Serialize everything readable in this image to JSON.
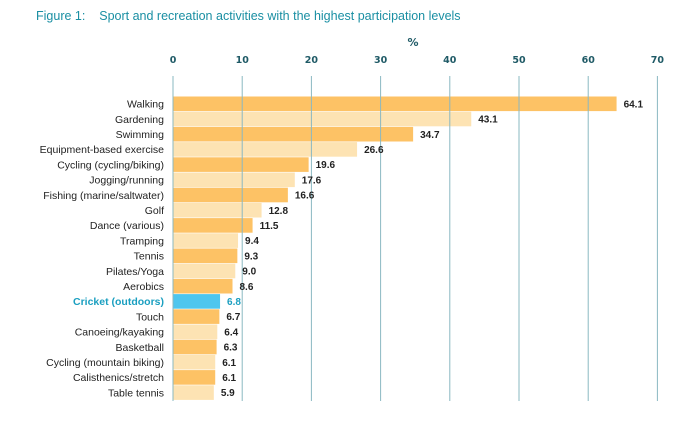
{
  "figure": {
    "label": "Figure 1:",
    "title": "Sport and recreation activities with the highest participation levels"
  },
  "chart_data": {
    "type": "bar",
    "orientation": "horizontal",
    "xlabel": "%",
    "xlim": [
      0,
      70
    ],
    "xticks": [
      0,
      10,
      20,
      30,
      40,
      50,
      60,
      70
    ],
    "grid": true,
    "categories": [
      "Walking",
      "Gardening",
      "Swimming",
      "Equipment-based exercise",
      "Cycling (cycling/biking)",
      "Jogging/running",
      "Fishing (marine/saltwater)",
      "Golf",
      "Dance (various)",
      "Tramping",
      "Tennis",
      "Pilates/Yoga",
      "Aerobics",
      "Cricket (outdoors)",
      "Touch",
      "Canoeing/kayaking",
      "Basketball",
      "Cycling (mountain biking)",
      "Calisthenics/stretch",
      "Table tennis"
    ],
    "values": [
      64.1,
      43.1,
      34.7,
      26.6,
      19.6,
      17.6,
      16.6,
      12.8,
      11.5,
      9.4,
      9.3,
      9.0,
      8.6,
      6.8,
      6.7,
      6.4,
      6.3,
      6.1,
      6.1,
      5.9
    ],
    "value_labels": [
      "64.1",
      "43.1",
      "34.7",
      "26.6",
      "19.6",
      "17.6",
      "16.6",
      "12.8",
      "11.5",
      "9.4",
      "9.3",
      "9.0",
      "8.6",
      "6.8",
      "6.7",
      "6.4",
      "6.3",
      "6.1",
      "6.1",
      "5.9"
    ],
    "highlight": "Cricket (outdoors)",
    "colors": {
      "bar_dark": "#fdc265",
      "bar_light": "#fde3b3",
      "highlight": "#4ec6ee",
      "highlight_text": "#1a9fc0",
      "grid": "#8ab8c2",
      "title": "#1a8fa3"
    }
  }
}
